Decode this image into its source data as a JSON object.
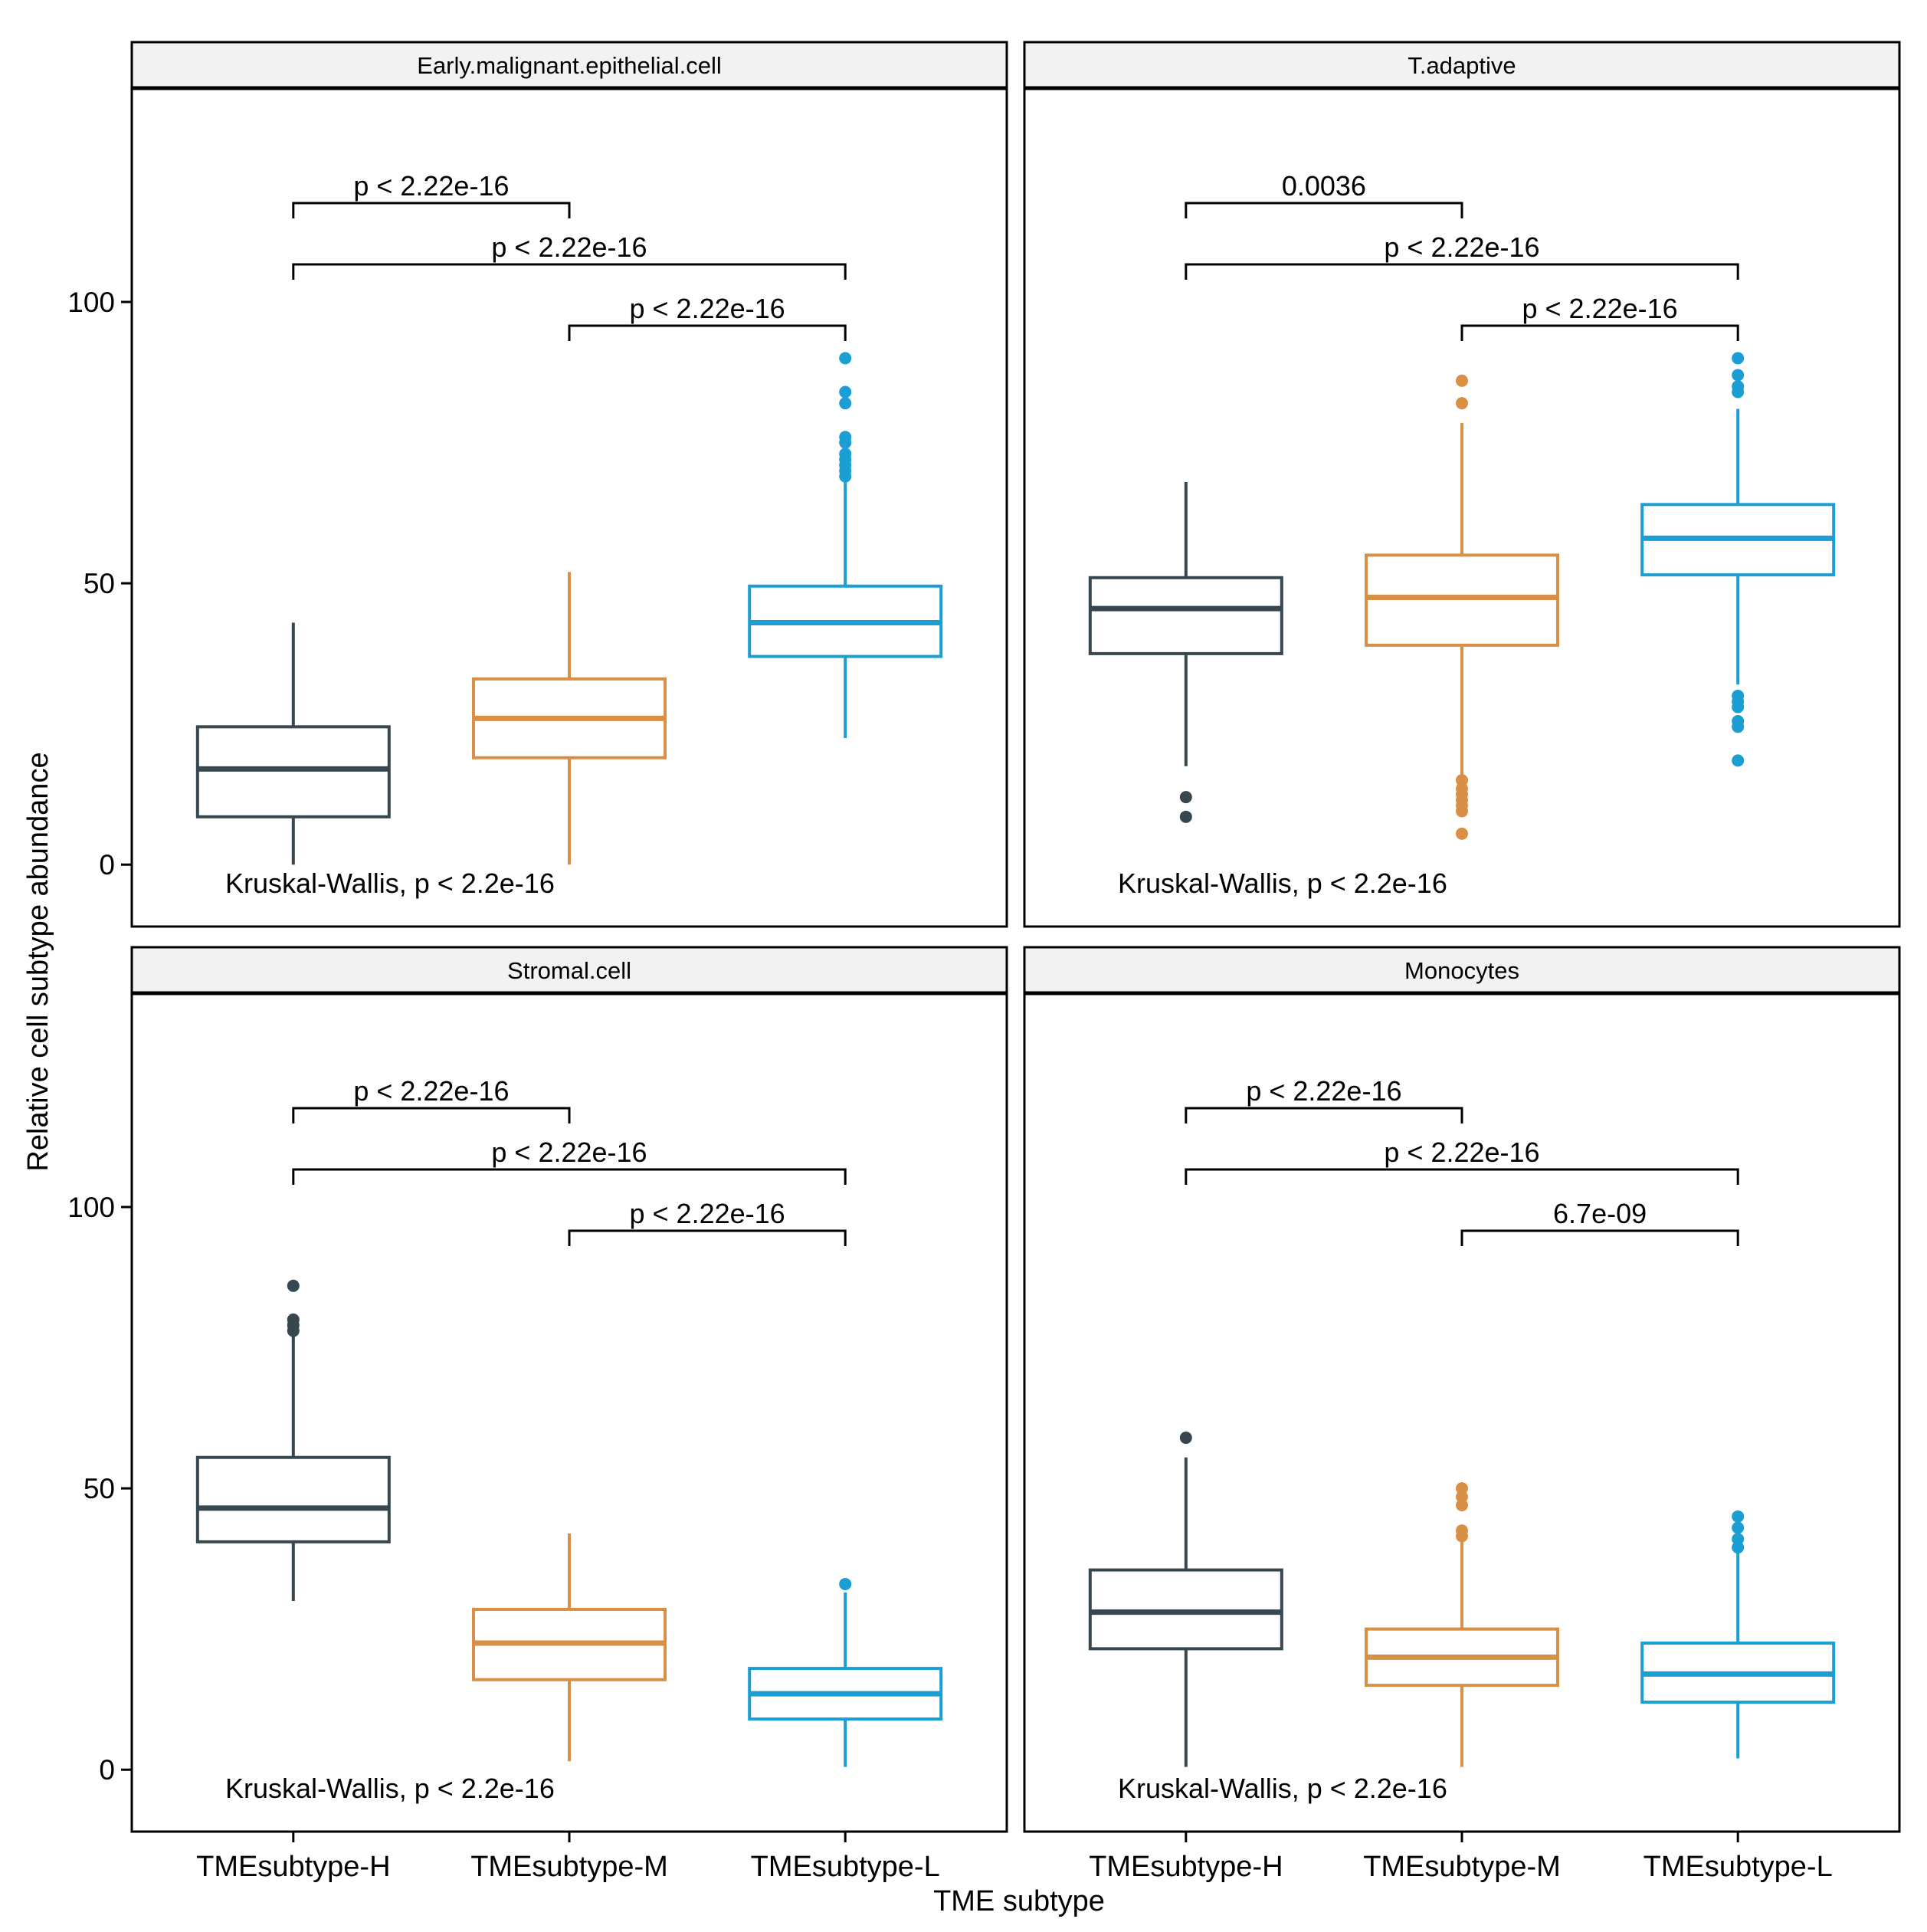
{
  "chart_data": {
    "type": "box",
    "xlabel": "TME subtype",
    "ylabel": "Relative cell subtype abundance",
    "categories": [
      "TMEsubtype-H",
      "TMEsubtype-M",
      "TMEsubtype-L"
    ],
    "colors": {
      "TMEsubtype-H": "#37474f",
      "TMEsubtype-M": "#d98f45",
      "TMEsubtype-L": "#1b9ed3"
    },
    "ylim": [
      -11,
      138
    ],
    "yticks": [
      0,
      50,
      100
    ],
    "ytick_labels": [
      "0",
      "50",
      "100"
    ],
    "panels": [
      {
        "title": "Early.malignant.epithelial.cell",
        "overall_test": "Kruskal-Wallis, p < 2.2e-16",
        "boxes": [
          {
            "group": "TMEsubtype-H",
            "whisker_low": 0,
            "q1": 8.5,
            "median": 17,
            "q3": 24.5,
            "whisker_high": 43,
            "outliers": []
          },
          {
            "group": "TMEsubtype-M",
            "whisker_low": 0,
            "q1": 19,
            "median": 26,
            "q3": 33,
            "whisker_high": 52,
            "outliers": []
          },
          {
            "group": "TMEsubtype-L",
            "whisker_low": 22.5,
            "q1": 37,
            "median": 43,
            "q3": 49.5,
            "whisker_high": 68,
            "outliers": [
              69,
              70,
              71,
              72,
              73,
              75,
              76,
              82,
              84,
              90
            ]
          }
        ],
        "comparisons": [
          {
            "groups": [
              "TMEsubtype-H",
              "TMEsubtype-M"
            ],
            "label": "p < 2.22e-16"
          },
          {
            "groups": [
              "TMEsubtype-H",
              "TMEsubtype-L"
            ],
            "label": "p < 2.22e-16"
          },
          {
            "groups": [
              "TMEsubtype-M",
              "TMEsubtype-L"
            ],
            "label": "p < 2.22e-16"
          }
        ]
      },
      {
        "title": "T.adaptive",
        "overall_test": "Kruskal-Wallis, p < 2.2e-16",
        "boxes": [
          {
            "group": "TMEsubtype-H",
            "whisker_low": 17.5,
            "q1": 37.5,
            "median": 45.5,
            "q3": 51,
            "whisker_high": 68,
            "outliers": [
              8.5,
              12
            ]
          },
          {
            "group": "TMEsubtype-M",
            "whisker_low": 15,
            "q1": 39,
            "median": 47.5,
            "q3": 55,
            "whisker_high": 78.5,
            "outliers": [
              5.5,
              9.5,
              10.5,
              11.5,
              12.5,
              13.5,
              15,
              82,
              86
            ]
          },
          {
            "group": "TMEsubtype-L",
            "whisker_low": 32,
            "q1": 51.5,
            "median": 58,
            "q3": 64,
            "whisker_high": 81,
            "outliers": [
              18.5,
              24.5,
              25.5,
              28,
              29,
              30,
              84,
              85,
              87,
              90
            ]
          }
        ],
        "comparisons": [
          {
            "groups": [
              "TMEsubtype-H",
              "TMEsubtype-M"
            ],
            "label": "0.0036"
          },
          {
            "groups": [
              "TMEsubtype-H",
              "TMEsubtype-L"
            ],
            "label": "p < 2.22e-16"
          },
          {
            "groups": [
              "TMEsubtype-M",
              "TMEsubtype-L"
            ],
            "label": "p < 2.22e-16"
          }
        ]
      },
      {
        "title": "Stromal.cell",
        "overall_test": "Kruskal-Wallis, p < 2.2e-16",
        "boxes": [
          {
            "group": "TMEsubtype-H",
            "whisker_low": 30,
            "q1": 40.5,
            "median": 46.5,
            "q3": 55.5,
            "whisker_high": 77.5,
            "outliers": [
              78,
              79,
              80,
              86
            ]
          },
          {
            "group": "TMEsubtype-M",
            "whisker_low": 1.5,
            "q1": 16,
            "median": 22.5,
            "q3": 28.5,
            "whisker_high": 42,
            "outliers": []
          },
          {
            "group": "TMEsubtype-L",
            "whisker_low": 0.5,
            "q1": 9,
            "median": 13.5,
            "q3": 18,
            "whisker_high": 31.5,
            "outliers": [
              33
            ]
          }
        ],
        "comparisons": [
          {
            "groups": [
              "TMEsubtype-H",
              "TMEsubtype-M"
            ],
            "label": "p < 2.22e-16"
          },
          {
            "groups": [
              "TMEsubtype-H",
              "TMEsubtype-L"
            ],
            "label": "p < 2.22e-16"
          },
          {
            "groups": [
              "TMEsubtype-M",
              "TMEsubtype-L"
            ],
            "label": "p < 2.22e-16"
          }
        ]
      },
      {
        "title": "Monocytes",
        "overall_test": "Kruskal-Wallis, p < 2.2e-16",
        "boxes": [
          {
            "group": "TMEsubtype-H",
            "whisker_low": 0.5,
            "q1": 21.5,
            "median": 28,
            "q3": 35.5,
            "whisker_high": 55.5,
            "outliers": [
              59
            ]
          },
          {
            "group": "TMEsubtype-M",
            "whisker_low": 0.5,
            "q1": 15,
            "median": 20,
            "q3": 25,
            "whisker_high": 41,
            "outliers": [
              41.5,
              42.5,
              47,
              48.5,
              50
            ]
          },
          {
            "group": "TMEsubtype-L",
            "whisker_low": 2,
            "q1": 12,
            "median": 17,
            "q3": 22.5,
            "whisker_high": 38.5,
            "outliers": [
              39.5,
              41,
              43,
              45
            ]
          }
        ],
        "comparisons": [
          {
            "groups": [
              "TMEsubtype-H",
              "TMEsubtype-M"
            ],
            "label": "p < 2.22e-16"
          },
          {
            "groups": [
              "TMEsubtype-H",
              "TMEsubtype-L"
            ],
            "label": "p < 2.22e-16"
          },
          {
            "groups": [
              "TMEsubtype-M",
              "TMEsubtype-L"
            ],
            "label": "6.7e-09"
          }
        ]
      }
    ]
  }
}
